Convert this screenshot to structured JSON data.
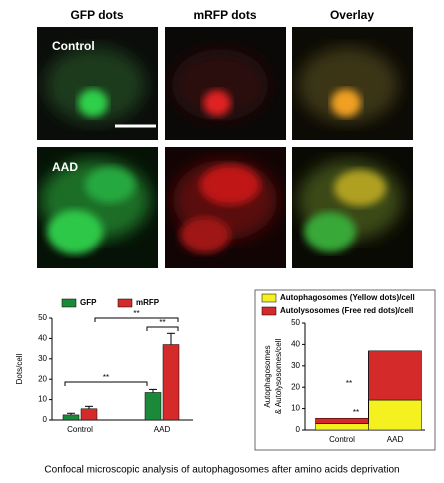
{
  "figure": {
    "column_headers": [
      "GFP dots",
      "mRFP dots",
      "Overlay"
    ],
    "row_labels": [
      "Control",
      "AAD"
    ],
    "caption": "Confocal microscopic analysis of autophagosomes  after amino acids deprivation"
  },
  "chart_data": [
    {
      "type": "bar",
      "categories": [
        "Control",
        "AAD"
      ],
      "series": [
        {
          "name": "GFP",
          "color": "#1a8a3a",
          "values": [
            2.5,
            13.5
          ],
          "errors": [
            0.8,
            1.5
          ]
        },
        {
          "name": "mRFP",
          "color": "#d42a2a",
          "values": [
            5.5,
            37
          ],
          "errors": [
            1.2,
            5.5
          ]
        }
      ],
      "ylabel": "Dots/cell",
      "ylim": [
        0,
        50
      ],
      "yticks": [
        0,
        10,
        20,
        30,
        40,
        50
      ],
      "annotations": [
        "**",
        "**",
        "**"
      ]
    },
    {
      "type": "stacked_bar",
      "categories": [
        "Control",
        "AAD"
      ],
      "series": [
        {
          "name": "Autophagosomes (Yellow dots)/cell",
          "color": "#f5f020",
          "values": [
            3,
            14
          ]
        },
        {
          "name": "Autolysosomes (Free red dots)/cell",
          "color": "#d42a2a",
          "values": [
            2.5,
            23
          ]
        }
      ],
      "ylabel": [
        "Autophagosomes",
        "& Autolysosomes/cell"
      ],
      "ylim": [
        0,
        50
      ],
      "yticks": [
        0,
        10,
        20,
        30,
        40,
        50
      ],
      "annotations": [
        "**",
        "**"
      ]
    }
  ]
}
